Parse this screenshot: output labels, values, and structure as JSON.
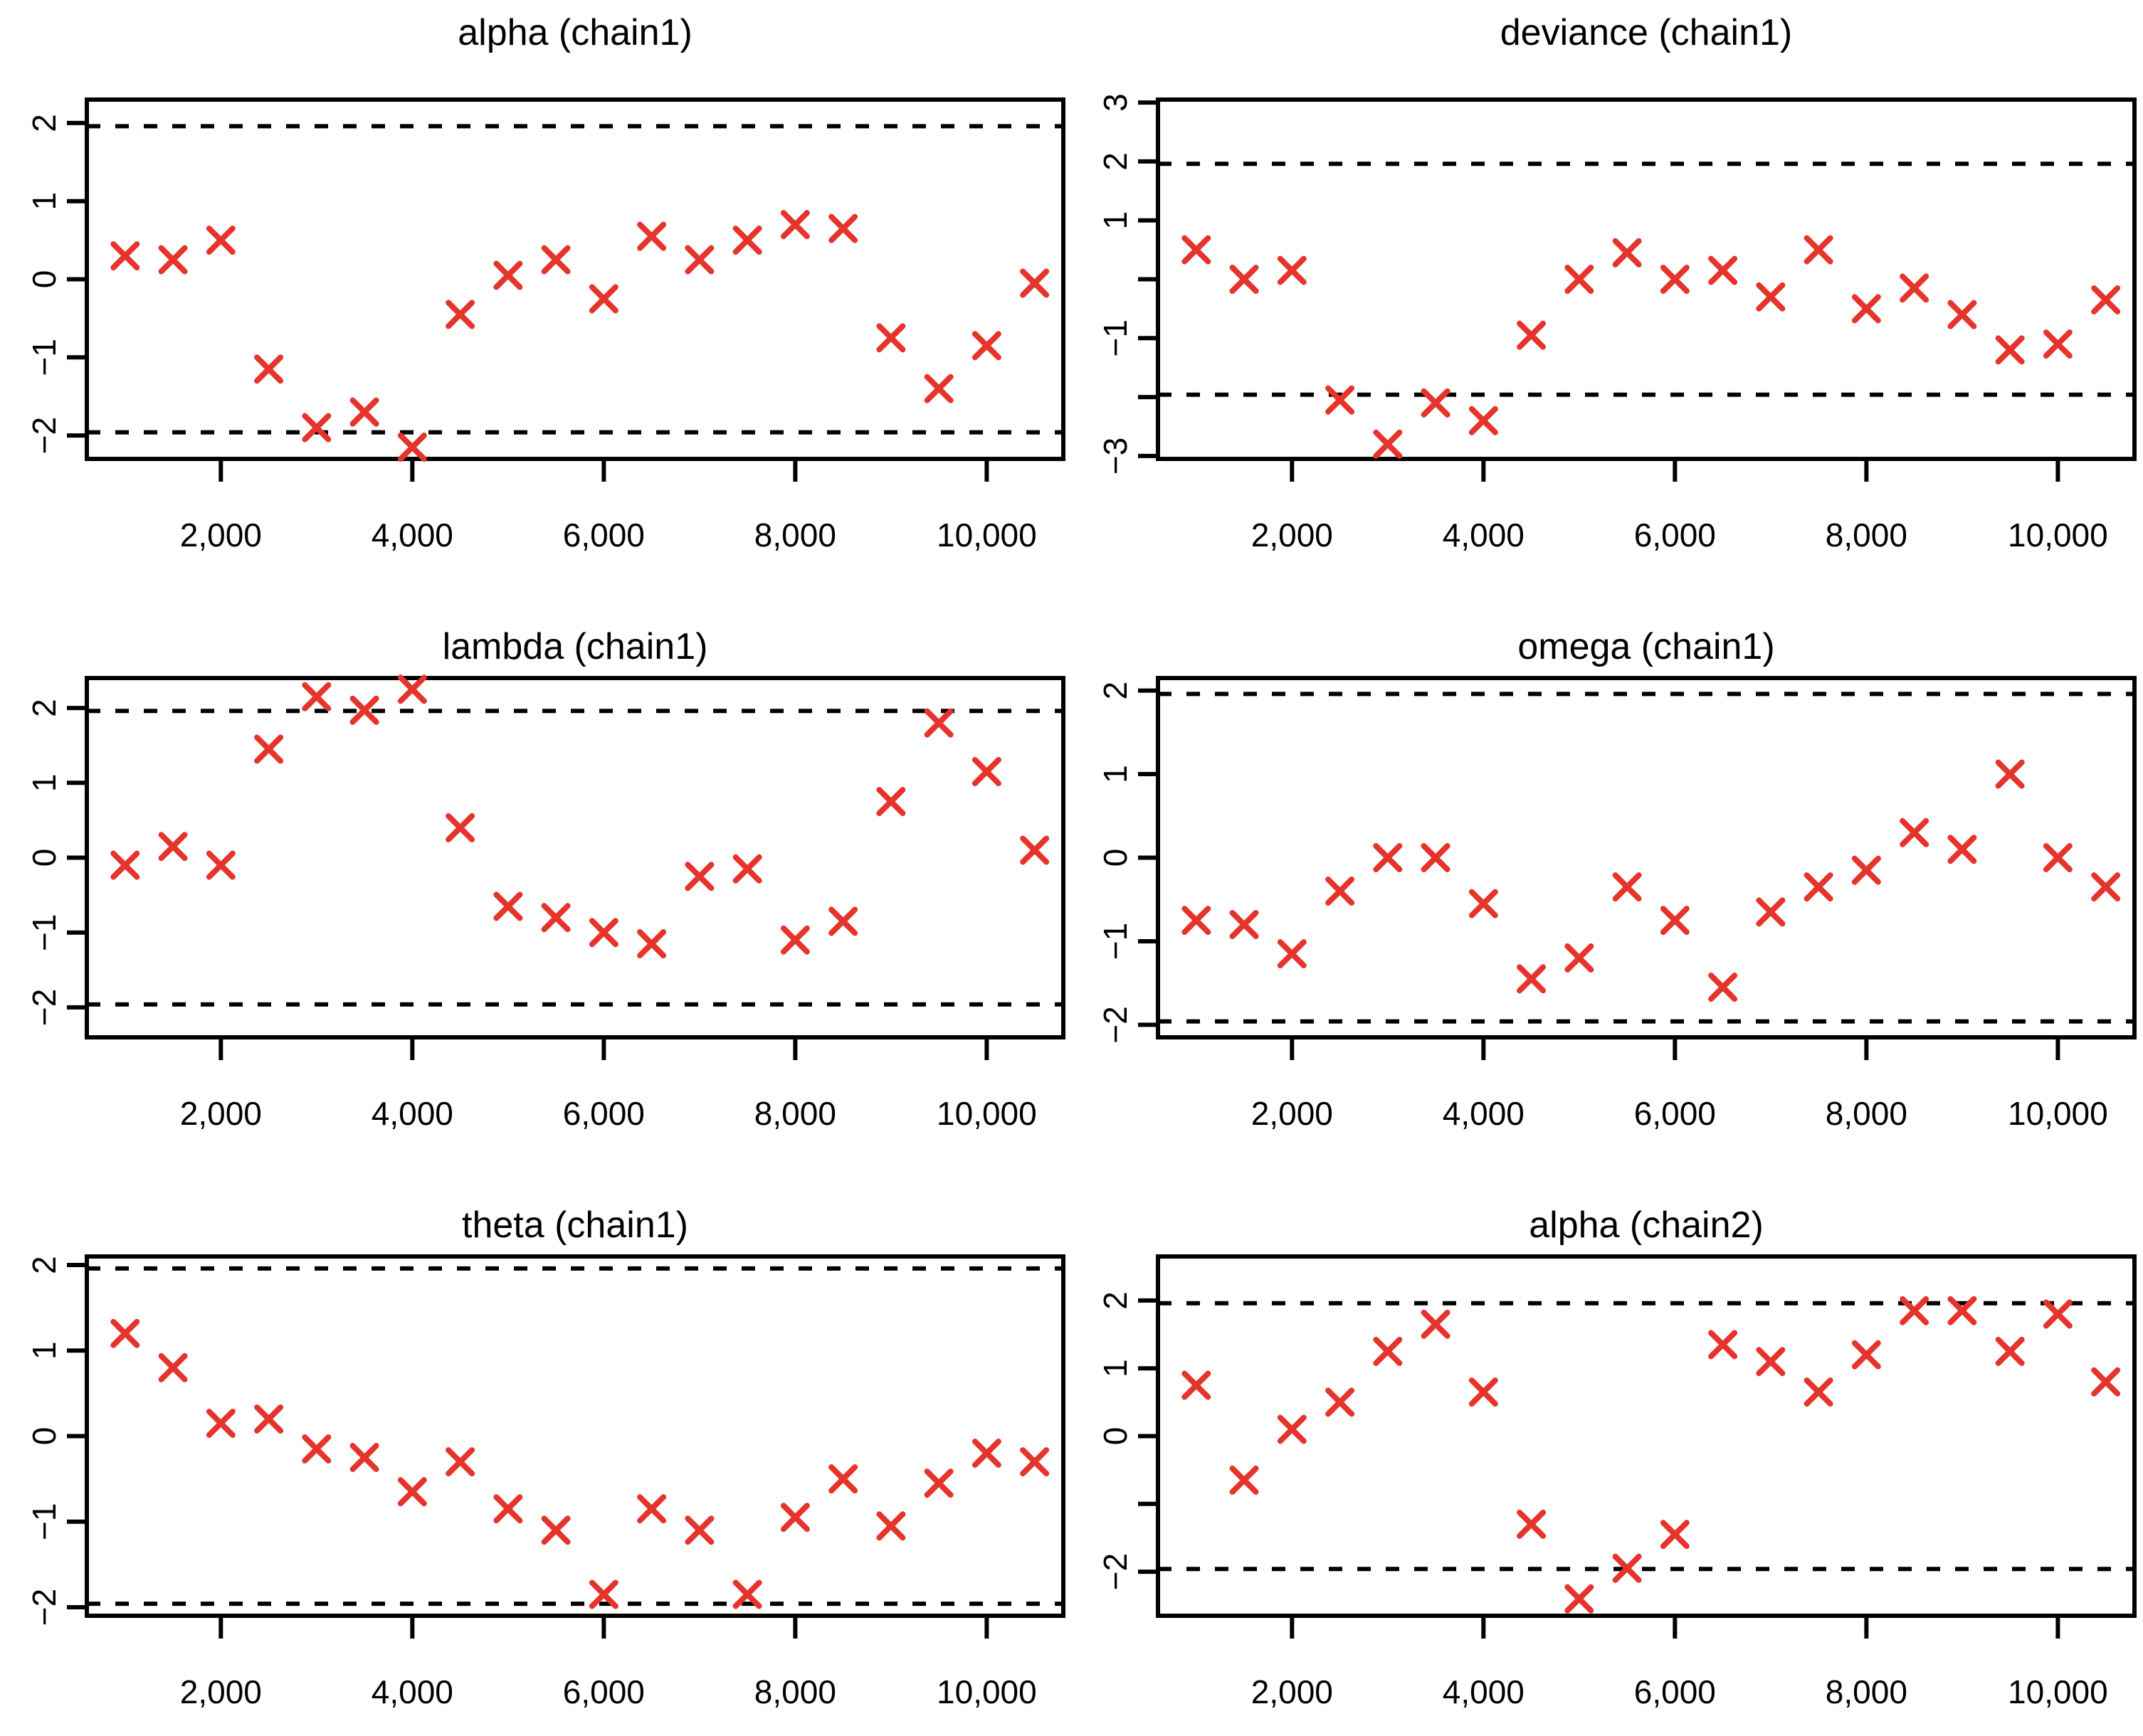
{
  "page": {
    "background": "#ffffff",
    "description": "Geweke convergence diagnostic Z-score plots, 2x3 grid of scatter panels"
  },
  "colors": {
    "marker": "#e5342b",
    "axis": "#000000",
    "dashed_line": "#000000",
    "title_text": "#000000"
  },
  "chart_data": [
    {
      "type": "scatter",
      "title": "alpha (chain1)",
      "marker": "x",
      "marker_color": "#e5342b",
      "x": [
        1000,
        1500,
        2000,
        2500,
        3000,
        3500,
        4000,
        4500,
        5000,
        5500,
        6000,
        6500,
        7000,
        7500,
        8000,
        8500,
        9000,
        9500,
        10000,
        10500
      ],
      "y": [
        0.3,
        0.25,
        0.5,
        -1.15,
        -1.9,
        -1.7,
        -2.15,
        -0.45,
        0.05,
        0.25,
        -0.25,
        0.55,
        0.25,
        0.5,
        0.7,
        0.65,
        -0.75,
        -1.4,
        -0.85,
        -0.05
      ],
      "xlim": [
        600,
        10800
      ],
      "ylim": [
        -2.3,
        2.3
      ],
      "xticks": [
        2000,
        4000,
        6000,
        8000,
        10000
      ],
      "xtick_labels": [
        "2,000",
        "4,000",
        "6,000",
        "8,000",
        "10,000"
      ],
      "yticks": [
        -2,
        -1,
        0,
        1,
        2
      ],
      "ytick_labels": [
        "−2",
        "−1",
        "0",
        "1",
        "2"
      ],
      "hlines": [
        -1.96,
        1.96
      ],
      "hline_style": "dashed",
      "grid": false,
      "legend": false
    },
    {
      "type": "scatter",
      "title": "deviance (chain1)",
      "marker": "x",
      "marker_color": "#e5342b",
      "x": [
        1000,
        1500,
        2000,
        2500,
        3000,
        3500,
        4000,
        4500,
        5000,
        5500,
        6000,
        6500,
        7000,
        7500,
        8000,
        8500,
        9000,
        9500,
        10000,
        10500
      ],
      "y": [
        0.5,
        0.0,
        0.15,
        -2.05,
        -2.8,
        -2.1,
        -2.4,
        -0.95,
        0.0,
        0.45,
        0.0,
        0.15,
        -0.3,
        0.5,
        -0.5,
        -0.15,
        -0.6,
        -1.2,
        -1.1,
        -0.35
      ],
      "xlim": [
        600,
        10800
      ],
      "ylim": [
        -3.05,
        3.05
      ],
      "xticks": [
        2000,
        4000,
        6000,
        8000,
        10000
      ],
      "xtick_labels": [
        "2,000",
        "4,000",
        "6,000",
        "8,000",
        "10,000"
      ],
      "yticks": [
        -3,
        -2,
        -1,
        0,
        1,
        2,
        3
      ],
      "ytick_labels": [
        "−3",
        "",
        "−1",
        "",
        "1",
        "2",
        "3"
      ],
      "hlines": [
        -1.96,
        1.96
      ],
      "hline_style": "dashed",
      "grid": false,
      "legend": false
    },
    {
      "type": "scatter",
      "title": "lambda (chain1)",
      "marker": "x",
      "marker_color": "#e5342b",
      "x": [
        1000,
        1500,
        2000,
        2500,
        3000,
        3500,
        4000,
        4500,
        5000,
        5500,
        6000,
        6500,
        7000,
        7500,
        8000,
        8500,
        9000,
        9500,
        10000,
        10500
      ],
      "y": [
        -0.1,
        0.15,
        -0.1,
        1.45,
        2.15,
        1.97,
        2.25,
        0.4,
        -0.65,
        -0.8,
        -1.0,
        -1.15,
        -0.25,
        -0.15,
        -1.1,
        -0.85,
        0.75,
        1.8,
        1.15,
        0.1
      ],
      "xlim": [
        600,
        10800
      ],
      "ylim": [
        -2.4,
        2.4
      ],
      "xticks": [
        2000,
        4000,
        6000,
        8000,
        10000
      ],
      "xtick_labels": [
        "2,000",
        "4,000",
        "6,000",
        "8,000",
        "10,000"
      ],
      "yticks": [
        -2,
        -1,
        0,
        1,
        2
      ],
      "ytick_labels": [
        "−2",
        "−1",
        "0",
        "1",
        "2"
      ],
      "hlines": [
        -1.96,
        1.96
      ],
      "hline_style": "dashed",
      "grid": false,
      "legend": false
    },
    {
      "type": "scatter",
      "title": "omega (chain1)",
      "marker": "x",
      "marker_color": "#e5342b",
      "x": [
        1000,
        1500,
        2000,
        2500,
        3000,
        3500,
        4000,
        4500,
        5000,
        5500,
        6000,
        6500,
        7000,
        7500,
        8000,
        8500,
        9000,
        9500,
        10000,
        10500
      ],
      "y": [
        -0.75,
        -0.8,
        -1.15,
        -0.4,
        0.0,
        0.0,
        -0.55,
        -1.45,
        -1.2,
        -0.35,
        -0.75,
        -1.55,
        -0.65,
        -0.35,
        -0.15,
        0.3,
        0.1,
        1.0,
        0.0,
        -0.35
      ],
      "xlim": [
        600,
        10800
      ],
      "ylim": [
        -2.15,
        2.15
      ],
      "xticks": [
        2000,
        4000,
        6000,
        8000,
        10000
      ],
      "xtick_labels": [
        "2,000",
        "4,000",
        "6,000",
        "8,000",
        "10,000"
      ],
      "yticks": [
        -2,
        -1,
        0,
        1,
        2
      ],
      "ytick_labels": [
        "−2",
        "−1",
        "0",
        "1",
        "2"
      ],
      "hlines": [
        -1.96,
        1.96
      ],
      "hline_style": "dashed",
      "grid": false,
      "legend": false
    },
    {
      "type": "scatter",
      "title": "theta (chain1)",
      "marker": "x",
      "marker_color": "#e5342b",
      "x": [
        1000,
        1500,
        2000,
        2500,
        3000,
        3500,
        4000,
        4500,
        5000,
        5500,
        6000,
        6500,
        7000,
        7500,
        8000,
        8500,
        9000,
        9500,
        10000,
        10500
      ],
      "y": [
        1.2,
        0.8,
        0.15,
        0.2,
        -0.15,
        -0.25,
        -0.65,
        -0.3,
        -0.85,
        -1.1,
        -1.85,
        -0.85,
        -1.1,
        -1.85,
        -0.95,
        -0.5,
        -1.05,
        -0.55,
        -0.2,
        -0.3
      ],
      "xlim": [
        600,
        10800
      ],
      "ylim": [
        -2.1,
        2.1
      ],
      "xticks": [
        2000,
        4000,
        6000,
        8000,
        10000
      ],
      "xtick_labels": [
        "2,000",
        "4,000",
        "6,000",
        "8,000",
        "10,000"
      ],
      "yticks": [
        -2,
        -1,
        0,
        1,
        2
      ],
      "ytick_labels": [
        "−2",
        "−1",
        "0",
        "1",
        "2"
      ],
      "hlines": [
        -1.96,
        1.96
      ],
      "hline_style": "dashed",
      "grid": false,
      "legend": false
    },
    {
      "type": "scatter",
      "title": "alpha (chain2)",
      "marker": "x",
      "marker_color": "#e5342b",
      "x": [
        1000,
        1500,
        2000,
        2500,
        3000,
        3500,
        4000,
        4500,
        5000,
        5500,
        6000,
        6500,
        7000,
        7500,
        8000,
        8500,
        9000,
        9500,
        10000,
        10500
      ],
      "y": [
        0.75,
        -0.65,
        0.1,
        0.5,
        1.25,
        1.65,
        0.65,
        -1.3,
        -2.4,
        -1.95,
        -1.45,
        1.35,
        1.1,
        0.65,
        1.2,
        1.85,
        1.85,
        1.25,
        1.8,
        0.8
      ],
      "xlim": [
        600,
        10800
      ],
      "ylim": [
        -2.65,
        2.65
      ],
      "xticks": [
        2000,
        4000,
        6000,
        8000,
        10000
      ],
      "xtick_labels": [
        "2,000",
        "4,000",
        "6,000",
        "8,000",
        "10,000"
      ],
      "yticks": [
        -2,
        -1,
        0,
        1,
        2
      ],
      "ytick_labels": [
        "−2",
        "",
        "0",
        "1",
        "2"
      ],
      "hlines": [
        -1.96,
        1.96
      ],
      "hline_style": "dashed",
      "grid": false,
      "legend": false
    }
  ]
}
